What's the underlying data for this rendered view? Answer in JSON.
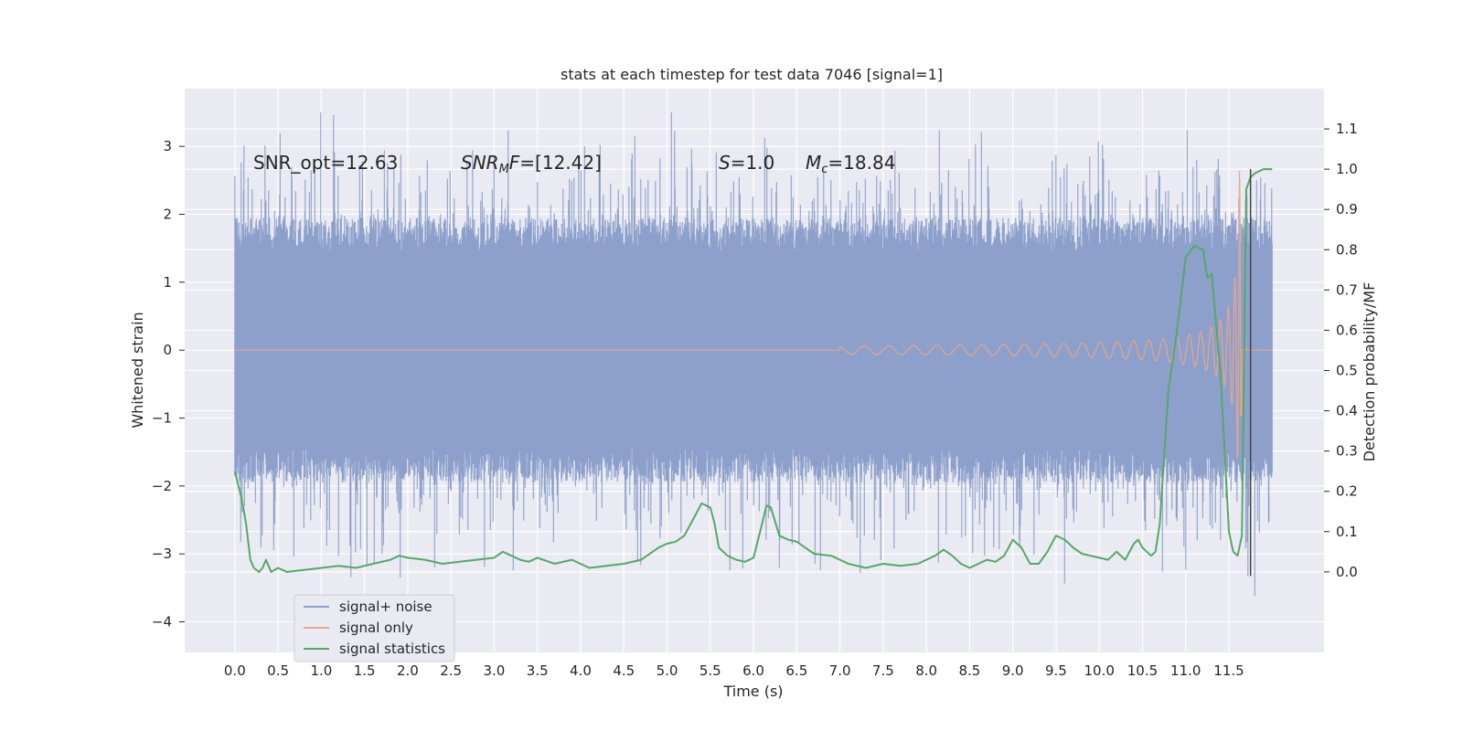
{
  "chart_data": {
    "type": "line",
    "title": "stats at each timestep for test data 7046 [signal=1]",
    "xlabel": "Time (s)",
    "ylabel": "Whitened strain",
    "ylabel_right": "Detection probability/MF",
    "xlim": [
      -0.58,
      12.6
    ],
    "ylim": [
      -4.45,
      3.85
    ],
    "ylim_right": [
      -0.2,
      1.2
    ],
    "x_ticks": [
      "0.0",
      "0.5",
      "1.0",
      "1.5",
      "2.0",
      "2.5",
      "3.0",
      "3.5",
      "4.0",
      "4.5",
      "5.0",
      "5.5",
      "6.0",
      "6.5",
      "7.0",
      "7.5",
      "8.0",
      "8.5",
      "9.0",
      "9.5",
      "10.0",
      "10.5",
      "11.0",
      "11.5"
    ],
    "y_ticks": [
      "3",
      "2",
      "1",
      "0",
      "−1",
      "−2",
      "−3",
      "−4"
    ],
    "y_right_ticks": [
      "1.1",
      "1.0",
      "0.9",
      "0.8",
      "0.7",
      "0.6",
      "0.5",
      "0.4",
      "0.3",
      "0.2",
      "0.1",
      "0.0"
    ],
    "grid": true,
    "legend_position": "lower-left",
    "colors": {
      "signal_noise": "#8da0cb",
      "signal_only": "#e8a58b",
      "signal_statistics": "#55a868",
      "marker_line": "#444444",
      "background": "#eaeaf2"
    },
    "annotations": {
      "snr_opt": "SNR_opt=12.63",
      "snr_mf_label": "SNR",
      "snr_mf_sub": "M",
      "snr_mf_rest": "F=[12.42]",
      "s_label": "S",
      "s_value": "=1.0",
      "mc_label": "M",
      "mc_sub": "c",
      "mc_value": "=18.84"
    },
    "series": [
      {
        "name": "signal+ noise",
        "envelope": {
          "x": [
            0.0,
            11.0
          ],
          "upper": 3.5,
          "lower": -4.05,
          "typical_range": [
            -1.5,
            1.5
          ]
        }
      },
      {
        "name": "signal only",
        "chirp": {
          "start_x": 7.0,
          "merger_x": 11.65,
          "max_amplitude": 2.7
        }
      },
      {
        "name": "signal statistics",
        "x": [
          0.0,
          0.08,
          0.13,
          0.18,
          0.22,
          0.28,
          0.32,
          0.36,
          0.42,
          0.5,
          0.6,
          0.8,
          1.0,
          1.2,
          1.4,
          1.6,
          1.8,
          1.9,
          2.0,
          2.2,
          2.4,
          2.6,
          2.8,
          3.0,
          3.1,
          3.2,
          3.3,
          3.4,
          3.5,
          3.7,
          3.9,
          4.1,
          4.3,
          4.5,
          4.7,
          4.9,
          5.0,
          5.1,
          5.2,
          5.3,
          5.4,
          5.5,
          5.55,
          5.6,
          5.7,
          5.8,
          5.9,
          6.0,
          6.1,
          6.15,
          6.2,
          6.3,
          6.4,
          6.5,
          6.6,
          6.7,
          6.9,
          7.1,
          7.3,
          7.5,
          7.7,
          7.9,
          8.0,
          8.1,
          8.2,
          8.3,
          8.4,
          8.5,
          8.6,
          8.7,
          8.8,
          8.9,
          9.0,
          9.1,
          9.15,
          9.2,
          9.3,
          9.4,
          9.5,
          9.6,
          9.7,
          9.8,
          9.9,
          10.0,
          10.1,
          10.2,
          10.3,
          10.4,
          10.45,
          10.5,
          10.55,
          10.6,
          10.65,
          10.7,
          10.8,
          10.9,
          11.0,
          11.1,
          11.2,
          11.25,
          11.3,
          11.4,
          11.5,
          11.55,
          11.6,
          11.65,
          11.7,
          11.75,
          11.8,
          11.85,
          11.9,
          12.0
        ],
        "values": [
          0.25,
          0.18,
          0.12,
          0.03,
          0.01,
          0.0,
          0.01,
          0.03,
          0.0,
          0.01,
          0.0,
          0.005,
          0.01,
          0.015,
          0.01,
          0.02,
          0.03,
          0.04,
          0.035,
          0.03,
          0.02,
          0.025,
          0.03,
          0.035,
          0.05,
          0.04,
          0.03,
          0.025,
          0.035,
          0.02,
          0.03,
          0.01,
          0.015,
          0.02,
          0.03,
          0.06,
          0.07,
          0.075,
          0.09,
          0.13,
          0.17,
          0.16,
          0.12,
          0.06,
          0.04,
          0.03,
          0.025,
          0.035,
          0.12,
          0.165,
          0.16,
          0.09,
          0.08,
          0.075,
          0.06,
          0.045,
          0.04,
          0.02,
          0.01,
          0.02,
          0.015,
          0.02,
          0.03,
          0.04,
          0.055,
          0.04,
          0.02,
          0.01,
          0.02,
          0.03,
          0.025,
          0.04,
          0.08,
          0.06,
          0.04,
          0.02,
          0.02,
          0.05,
          0.09,
          0.08,
          0.06,
          0.045,
          0.04,
          0.035,
          0.03,
          0.05,
          0.03,
          0.07,
          0.08,
          0.06,
          0.05,
          0.04,
          0.05,
          0.12,
          0.45,
          0.6,
          0.78,
          0.81,
          0.8,
          0.73,
          0.74,
          0.5,
          0.1,
          0.05,
          0.04,
          0.09,
          0.95,
          0.98,
          0.99,
          0.995,
          1.0,
          1.0
        ]
      }
    ],
    "vertical_marker": {
      "x": 11.75,
      "y_right_range": [
        -0.01,
        1.0
      ]
    },
    "legend": [
      {
        "label": "signal+ noise"
      },
      {
        "label": "signal only"
      },
      {
        "label": "signal statistics"
      }
    ]
  }
}
